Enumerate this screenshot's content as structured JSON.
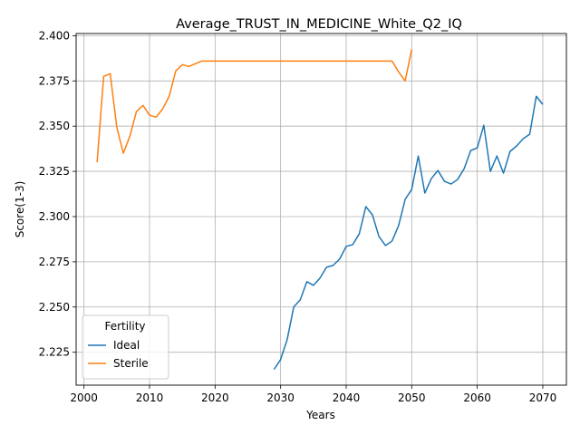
{
  "chart_data": {
    "type": "line",
    "title": "Average_TRUST_IN_MEDICINE_White_Q2_IQ",
    "xlabel": "Years",
    "ylabel": "Score(1-3)",
    "xlim": [
      1998.8,
      2073.6
    ],
    "ylim": [
      2.2068,
      2.4012
    ],
    "xticks": [
      2000,
      2010,
      2020,
      2030,
      2040,
      2050,
      2060,
      2070
    ],
    "xtick_labels": [
      "2000",
      "2010",
      "2020",
      "2030",
      "2040",
      "2050",
      "2060",
      "2070"
    ],
    "yticks": [
      2.225,
      2.25,
      2.275,
      2.3,
      2.325,
      2.35,
      2.375,
      2.4
    ],
    "ytick_labels": [
      "2.225",
      "2.250",
      "2.275",
      "2.300",
      "2.325",
      "2.350",
      "2.375",
      "2.400"
    ],
    "grid": true,
    "legend": {
      "title": "Fertility",
      "placement": "lower-left"
    },
    "series": [
      {
        "name": "Ideal",
        "color": "#1f77b4",
        "x": [
          2029,
          2030,
          2031,
          2032,
          2033,
          2034,
          2035,
          2036,
          2037,
          2038,
          2039,
          2040,
          2041,
          2042,
          2043,
          2044,
          2045,
          2046,
          2047,
          2048,
          2049,
          2050,
          2051,
          2052,
          2053,
          2054,
          2055,
          2056,
          2057,
          2058,
          2059,
          2060,
          2061,
          2062,
          2063,
          2064,
          2065,
          2066,
          2067,
          2068,
          2069,
          2070
        ],
        "y": [
          2.2155,
          2.221,
          2.232,
          2.25,
          2.254,
          2.264,
          2.262,
          2.266,
          2.272,
          2.273,
          2.2765,
          2.2835,
          2.2845,
          2.2905,
          2.3055,
          2.301,
          2.289,
          2.284,
          2.2865,
          2.295,
          2.3095,
          2.315,
          2.3335,
          2.313,
          2.321,
          2.3255,
          2.3195,
          2.318,
          2.3205,
          2.3265,
          2.3365,
          2.338,
          2.3505,
          2.325,
          2.3335,
          2.324,
          2.336,
          2.339,
          2.343,
          2.3455,
          2.3665,
          2.362
        ]
      },
      {
        "name": "Sterile",
        "color": "#ff7f0e",
        "x": [
          2002,
          2003,
          2004,
          2005,
          2006,
          2007,
          2008,
          2009,
          2010,
          2011,
          2012,
          2013,
          2014,
          2015,
          2016,
          2017,
          2018,
          2019,
          2020,
          2021,
          2022,
          2023,
          2024,
          2025,
          2026,
          2027,
          2028,
          2029,
          2030,
          2031,
          2032,
          2033,
          2034,
          2035,
          2036,
          2037,
          2038,
          2039,
          2040,
          2041,
          2042,
          2043,
          2044,
          2045,
          2046,
          2047,
          2048,
          2049,
          2050
        ],
        "y": [
          2.33,
          2.3775,
          2.379,
          2.3495,
          2.335,
          2.3445,
          2.358,
          2.3615,
          2.356,
          2.355,
          2.3595,
          2.3665,
          2.3805,
          2.384,
          2.383,
          2.3845,
          2.386,
          2.386,
          2.386,
          2.386,
          2.386,
          2.386,
          2.386,
          2.386,
          2.386,
          2.386,
          2.386,
          2.386,
          2.386,
          2.386,
          2.386,
          2.386,
          2.386,
          2.386,
          2.386,
          2.386,
          2.386,
          2.386,
          2.386,
          2.386,
          2.386,
          2.386,
          2.386,
          2.386,
          2.386,
          2.386,
          2.38,
          2.375,
          2.3925
        ]
      }
    ]
  }
}
